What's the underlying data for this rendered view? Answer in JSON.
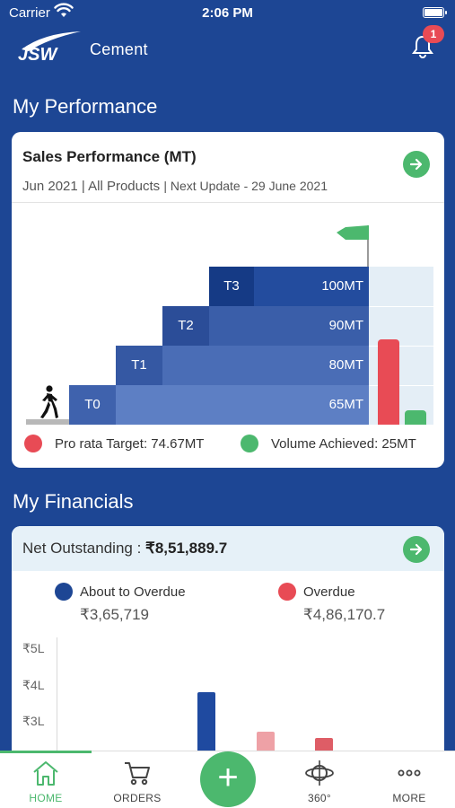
{
  "status_bar": {
    "carrier": "Carrier",
    "time": "2:06 PM"
  },
  "header": {
    "logo_text": "Cement",
    "logo_mark": "JSW",
    "notification_count": "1"
  },
  "performance": {
    "section_title": "My Performance",
    "card_title": "Sales Performance (MT)",
    "period": "Jun 2021 | All Products",
    "next_update": "| Next Update - 29 June 2021",
    "tiers": [
      {
        "label": "T0",
        "value": "65MT"
      },
      {
        "label": "T1",
        "value": "80MT"
      },
      {
        "label": "T2",
        "value": "90MT"
      },
      {
        "label": "T3",
        "value": "100MT"
      }
    ],
    "pro_rata": {
      "label": "Pro rata Target: 74.67MT",
      "value": 74.67,
      "color": "#e84b55"
    },
    "achieved": {
      "label": "Volume Achieved: 25MT",
      "value": 25,
      "color": "#4cb86e"
    }
  },
  "financials": {
    "section_title": "My Financials",
    "net_outstanding_label": "Net Outstanding : ",
    "net_outstanding_value": "₹8,51,889.7",
    "about_to_overdue": {
      "label": "About to Overdue",
      "amount": "₹3,65,719",
      "color": "#1d4694"
    },
    "overdue": {
      "label": "Overdue",
      "amount": "₹4,86,170.7",
      "color": "#e84b55"
    },
    "y_ticks": [
      "₹5L",
      "₹4L",
      "₹3L"
    ]
  },
  "tabbar": {
    "tabs": [
      {
        "label": "HOME",
        "icon": "home-icon",
        "active": true
      },
      {
        "label": "ORDERS",
        "icon": "cart-icon"
      },
      {
        "label": "360°",
        "icon": "360-icon"
      },
      {
        "label": "MORE",
        "icon": "more-icon"
      }
    ],
    "fab_label": "+"
  },
  "colors": {
    "brand": "#1d4694",
    "accent": "#4cb86e",
    "alert": "#e84b55"
  }
}
